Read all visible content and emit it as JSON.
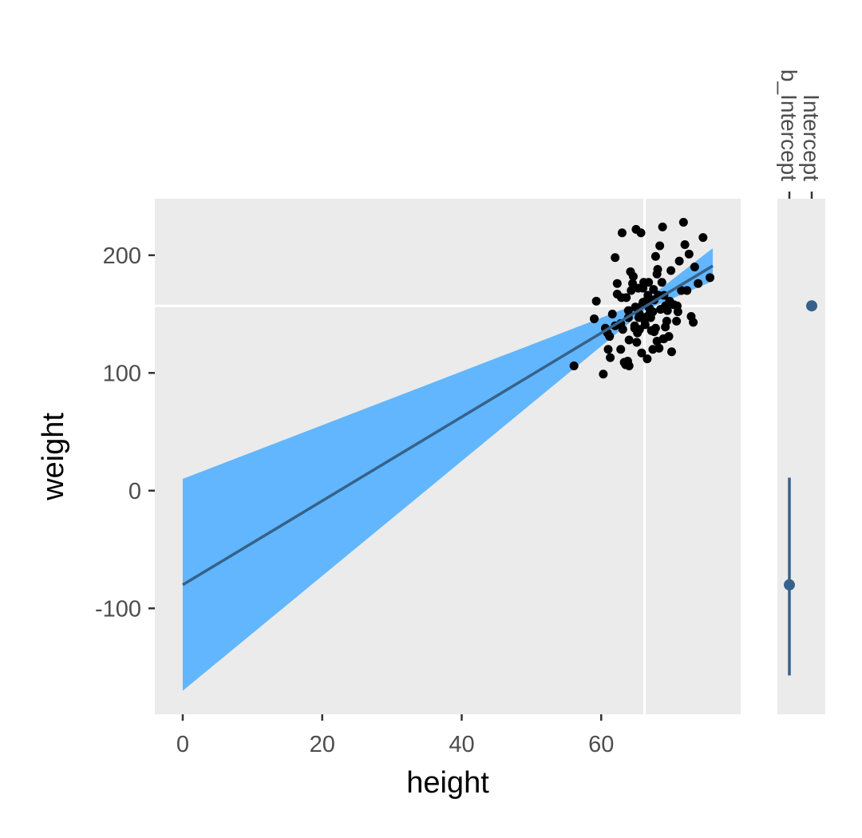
{
  "chart_data": [
    {
      "type": "scatter",
      "xlabel": "height",
      "ylabel": "weight",
      "xlim": [
        -4,
        80
      ],
      "ylim": [
        -190,
        248
      ],
      "xticks": [
        0,
        20,
        40,
        60
      ],
      "yticks": [
        -100,
        0,
        100,
        200
      ],
      "grid": true,
      "reference_lines": {
        "x_mean": 66.2,
        "y_mean": 157
      },
      "fit": {
        "x": [
          0,
          76
        ],
        "y": [
          -80,
          191
        ],
        "ribbon_x": [
          0,
          66.2,
          76
        ],
        "ribbon_lower": [
          -170,
          153,
          178
        ],
        "ribbon_upper": [
          10,
          161,
          206
        ],
        "colors": {
          "line": "#36628a",
          "ribbon": "#62b6fd"
        }
      },
      "points": {
        "x": [
          56.1,
          59.0,
          60.3,
          59.3,
          61.0,
          60.6,
          62.0,
          61.6,
          61.2,
          62.3,
          62.8,
          63.1,
          62.9,
          63.5,
          63.9,
          64.0,
          64.2,
          64.5,
          64.8,
          65.0,
          65.2,
          65.5,
          65.7,
          65.9,
          66.0,
          66.2,
          66.4,
          66.6,
          66.8,
          67.0,
          67.2,
          67.4,
          67.6,
          67.8,
          68.0,
          68.2,
          68.5,
          68.8,
          69.0,
          69.2,
          69.5,
          69.8,
          70.1,
          70.4,
          70.8,
          71.2,
          71.8,
          72.3,
          72.9,
          73.4,
          73.9,
          74.6,
          75.6,
          63.0,
          63.3,
          64.8,
          65.4,
          66.7,
          67.0,
          67.6,
          68.3,
          68.7,
          69.4,
          70.0,
          71.5,
          72.0,
          64.3,
          65.8,
          66.9,
          68.0,
          62.0,
          63.6,
          64.9,
          66.1,
          67.4,
          69.2,
          61.3,
          62.8,
          64.0,
          65.1,
          66.3,
          67.5,
          68.4,
          69.7,
          70.9,
          72.6,
          64.6,
          66.0,
          67.8,
          69.0,
          63.8,
          65.3,
          66.6,
          68.1,
          60.9,
          62.3,
          63.9,
          65.5,
          67.1,
          68.9,
          71.0,
          73.2
        ],
        "y": [
          106,
          146,
          99,
          161,
          120,
          138,
          198,
          150,
          131,
          167,
          120,
          137,
          164,
          107,
          147,
          128,
          186,
          176,
          138,
          222,
          134,
          150,
          219,
          158,
          172,
          145,
          161,
          112,
          177,
          150,
          136,
          120,
          135,
          138,
          184,
          166,
          154,
          224,
          129,
          139,
          153,
          161,
          118,
          158,
          144,
          195,
          228,
          170,
          148,
          190,
          176,
          215,
          181,
          219,
          109,
          140,
          147,
          166,
          151,
          162,
          121,
          177,
          144,
          187,
          170,
          209,
          170,
          117,
          155,
          127,
          140,
          164,
          156,
          177,
          152,
          157,
          113,
          142,
          106,
          126,
          141,
          171,
          208,
          131,
          157,
          201,
          182,
          160,
          199,
          166,
          110,
          172,
          148,
          188,
          134,
          176,
          153,
          137,
          147,
          129,
          152,
          143
        ],
        "color": "#000000"
      }
    },
    {
      "type": "pointrange",
      "categories": [
        "b_Intercept",
        "Intercept"
      ],
      "estimates": [
        -80,
        157
      ],
      "lower": [
        -157,
        157
      ],
      "upper": [
        11,
        157
      ],
      "ylim": [
        -190,
        248
      ],
      "color": "#36628a"
    }
  ]
}
